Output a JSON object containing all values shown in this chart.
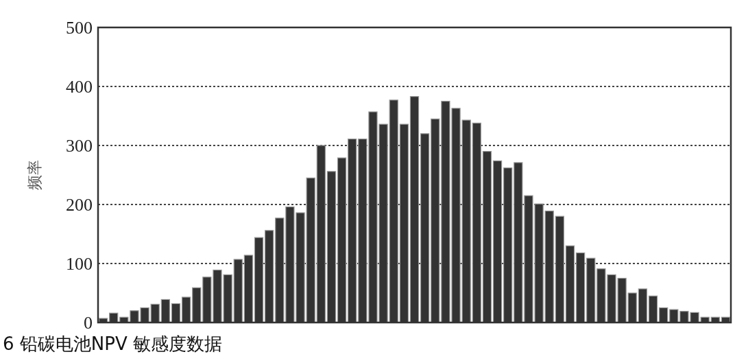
{
  "chart_data": {
    "type": "bar",
    "categories": [
      null,
      null,
      null,
      null,
      null,
      null,
      null,
      null,
      null,
      null,
      null,
      null,
      null,
      null,
      null,
      null,
      null,
      null,
      null,
      null,
      null,
      null,
      null,
      null,
      null,
      null,
      null,
      null,
      null,
      null,
      null,
      null,
      null,
      null,
      null,
      null,
      null,
      null,
      null,
      null,
      null,
      null,
      null,
      null,
      null,
      null,
      null,
      null,
      null,
      null,
      null,
      null,
      null,
      null,
      null,
      null,
      null,
      null,
      null,
      null,
      null
    ],
    "values": [
      7,
      16,
      9,
      20,
      25,
      31,
      39,
      32,
      43,
      59,
      77,
      89,
      81,
      107,
      114,
      144,
      156,
      177,
      196,
      186,
      245,
      300,
      256,
      279,
      311,
      311,
      357,
      336,
      377,
      336,
      383,
      320,
      345,
      375,
      363,
      343,
      338,
      290,
      274,
      262,
      271,
      215,
      201,
      189,
      180,
      130,
      118,
      109,
      91,
      81,
      75,
      50,
      57,
      45,
      25,
      22,
      19,
      17,
      9,
      9,
      9
    ],
    "color": "#333333",
    "ylim": [
      0,
      500
    ],
    "yticks": [
      0,
      100,
      200,
      300,
      400,
      500
    ],
    "ylabel": "频率",
    "grid": "y",
    "annotations": [
      "6 铅碳电池NPV 敏感度数据"
    ]
  }
}
